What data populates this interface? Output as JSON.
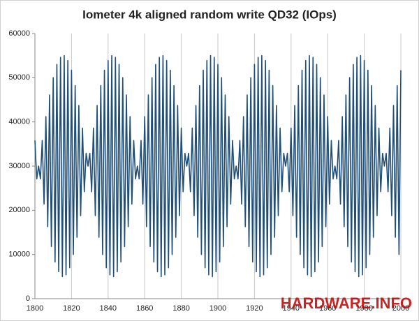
{
  "chart_data": {
    "type": "line",
    "title": "Iometer 4k aligned random write QD32 (IOps)",
    "watermark": "HARDWARE.INFO",
    "x": [
      1800,
      1801,
      1802,
      1803,
      1804,
      1805,
      1806,
      1807,
      1808,
      1809,
      1810,
      1811,
      1812,
      1813,
      1814,
      1815,
      1816,
      1817,
      1818,
      1819,
      1820,
      1821,
      1822,
      1823,
      1824,
      1825,
      1826,
      1827,
      1828,
      1829,
      1830,
      1831,
      1832,
      1833,
      1834,
      1835,
      1836,
      1837,
      1838,
      1839,
      1840,
      1841,
      1842,
      1843,
      1844,
      1845,
      1846,
      1847,
      1848,
      1849,
      1850,
      1851,
      1852,
      1853,
      1854,
      1855,
      1856,
      1857,
      1858,
      1859,
      1860,
      1861,
      1862,
      1863,
      1864,
      1865,
      1866,
      1867,
      1868,
      1869,
      1870,
      1871,
      1872,
      1873,
      1874,
      1875,
      1876,
      1877,
      1878,
      1879,
      1880,
      1881,
      1882,
      1883,
      1884,
      1885,
      1886,
      1887,
      1888,
      1889,
      1890,
      1891,
      1892,
      1893,
      1894,
      1895,
      1896,
      1897,
      1898,
      1899,
      1900,
      1901,
      1902,
      1903,
      1904,
      1905,
      1906,
      1907,
      1908,
      1909,
      1910,
      1911,
      1912,
      1913,
      1914,
      1915,
      1916,
      1917,
      1918,
      1919,
      1920,
      1921,
      1922,
      1923,
      1924,
      1925,
      1926,
      1927,
      1928,
      1929,
      1930,
      1931,
      1932,
      1933,
      1934,
      1935,
      1936,
      1937,
      1938,
      1939,
      1940,
      1941,
      1942,
      1943,
      1944,
      1945,
      1946,
      1947,
      1948,
      1949,
      1950,
      1951,
      1952,
      1953,
      1954,
      1955,
      1956,
      1957,
      1958,
      1959,
      1960,
      1961,
      1962,
      1963,
      1964,
      1965,
      1966,
      1967,
      1968,
      1969,
      1970,
      1971,
      1972,
      1973,
      1974,
      1975,
      1976,
      1977,
      1978,
      1979,
      1980,
      1981,
      1982,
      1983,
      1984,
      1985,
      1986,
      1987,
      1988,
      1989,
      1990,
      1991,
      1992,
      1993,
      1994,
      1995,
      1996,
      1997,
      1998,
      1999,
      2000
    ],
    "series": [
      {
        "name": "IOps",
        "color": "#1f4e79",
        "values": [
          35800,
          27100,
          30000,
          27100,
          35800,
          21400,
          41200,
          16300,
          46100,
          11800,
          50000,
          8300,
          53000,
          6100,
          54600,
          5000,
          55000,
          5400,
          53900,
          7000,
          51700,
          10000,
          48200,
          13900,
          43700,
          18800,
          38600,
          24200,
          32900,
          30000,
          32900,
          24200,
          38600,
          18800,
          43700,
          13900,
          48200,
          10000,
          51700,
          7000,
          53900,
          5400,
          55000,
          5000,
          54600,
          6100,
          53000,
          8300,
          50000,
          11800,
          46100,
          16300,
          41200,
          21400,
          35800,
          27100,
          30000,
          27100,
          35800,
          21400,
          41200,
          16300,
          46100,
          11800,
          50000,
          8300,
          53000,
          6100,
          54600,
          5000,
          55000,
          5400,
          53900,
          7000,
          51700,
          10000,
          48200,
          13900,
          43700,
          18800,
          38600,
          24200,
          32900,
          30000,
          32900,
          24200,
          38600,
          18800,
          43700,
          13900,
          48200,
          10000,
          51700,
          7000,
          53900,
          5400,
          55000,
          5000,
          54600,
          6100,
          53000,
          8300,
          50000,
          11800,
          46100,
          16300,
          41200,
          21400,
          35800,
          27100,
          30000,
          27100,
          35800,
          21400,
          41200,
          16300,
          46100,
          11800,
          50000,
          8300,
          53000,
          6100,
          54600,
          5000,
          55000,
          5400,
          53900,
          7000,
          51700,
          10000,
          48200,
          13900,
          43700,
          18800,
          38600,
          24200,
          32900,
          30000,
          32900,
          24200,
          38600,
          18800,
          43700,
          13900,
          48200,
          10000,
          51700,
          7000,
          53900,
          5400,
          55000,
          5000,
          54600,
          6100,
          53000,
          8300,
          50000,
          11800,
          46100,
          16300,
          41200,
          21400,
          35800,
          27100,
          30000,
          27100,
          35800,
          21400,
          41200,
          16300,
          46100,
          11800,
          50000,
          8300,
          53000,
          6100,
          54600,
          5000,
          55000,
          5400,
          53900,
          7000,
          51700,
          10000,
          48200,
          13900,
          43700,
          18800,
          38600,
          24200,
          32900,
          30000,
          32900,
          24200,
          38600,
          18800,
          43700,
          13900,
          48200,
          10000,
          51700
        ]
      }
    ],
    "xlim": [
      1800,
      2000
    ],
    "xticks": [
      1800,
      1820,
      1840,
      1860,
      1880,
      1900,
      1920,
      1940,
      1960,
      1980,
      2000
    ],
    "ylim": [
      0,
      60000
    ],
    "yticks": [
      0,
      10000,
      20000,
      30000,
      40000,
      50000,
      60000
    ],
    "grid": "x"
  }
}
